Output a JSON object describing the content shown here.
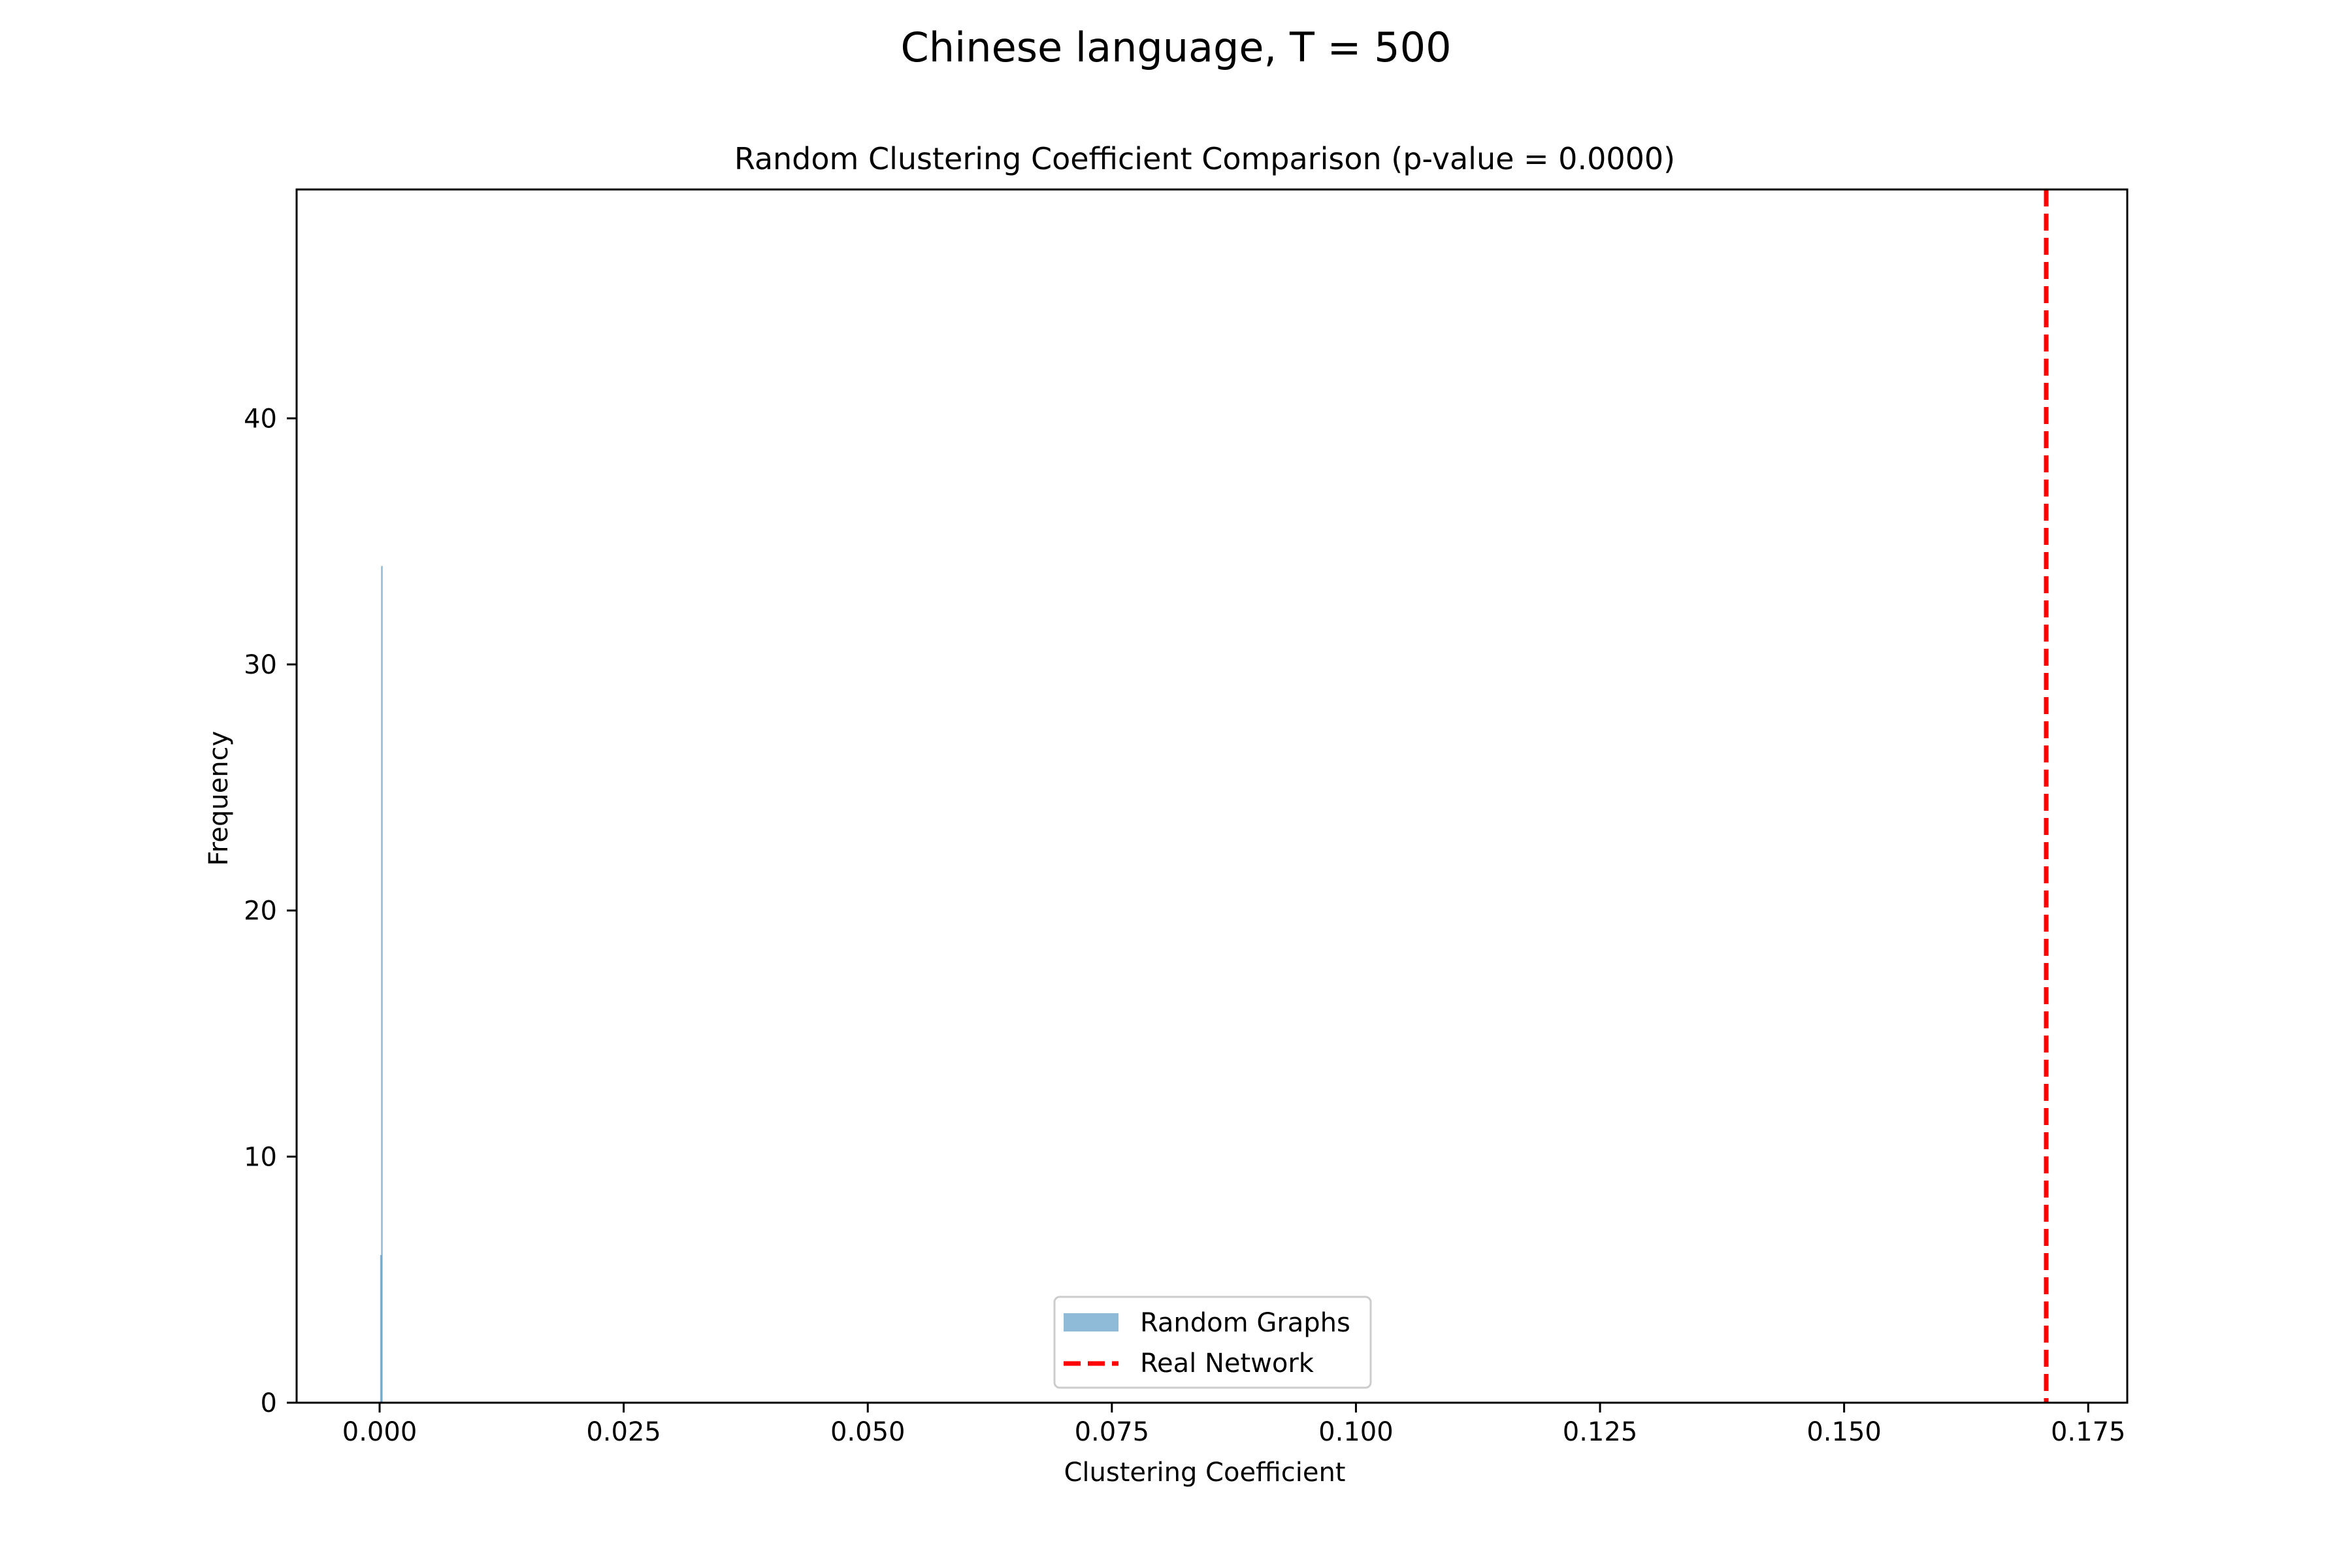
{
  "figure": {
    "suptitle": "Chinese language, T = 500"
  },
  "chart_data": {
    "type": "bar",
    "title": "Random Clustering Coefficient Comparison (p-value = 0.0000)",
    "xlabel": "Clustering Coefficient",
    "ylabel": "Frequency",
    "xlim": [
      -0.0085,
      0.179
    ],
    "ylim": [
      0,
      49.3
    ],
    "xticks": [
      0.0,
      0.025,
      0.05,
      0.075,
      0.1,
      0.125,
      0.15,
      0.175
    ],
    "xtick_labels": [
      "0.000",
      "0.025",
      "0.050",
      "0.075",
      "0.100",
      "0.125",
      "0.150",
      "0.175"
    ],
    "yticks": [
      0,
      10,
      20,
      30,
      40
    ],
    "ytick_labels": [
      "0",
      "10",
      "20",
      "30",
      "40"
    ],
    "histogram": {
      "name": "Random Graphs",
      "color": "#1f77b4",
      "alpha": 0.5,
      "bins": [
        {
          "x0": 5e-05,
          "x1": 0.00015,
          "count": 6
        },
        {
          "x0": 0.00015,
          "x1": 0.00025,
          "count": 34
        }
      ]
    },
    "reference_line": {
      "name": "Real Network",
      "x": 0.1707,
      "color": "#ff0000",
      "style": "dashed"
    },
    "legend": {
      "placement": "lower center",
      "entries": [
        "Random Graphs",
        "Real Network"
      ]
    },
    "grid": false
  }
}
